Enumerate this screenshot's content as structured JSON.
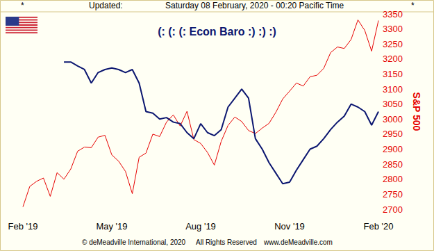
{
  "chart_data": {
    "type": "line",
    "title": "(: (: (: Econ Baro :) :) :)",
    "header": [
      "*",
      "Updated:",
      "Saturday 08 February, 2020 - 00:20 Pacific Time",
      "*"
    ],
    "footer": [
      "© deMeadville International, 2020",
      "All Rights Reserved",
      "www.deMeadville.com"
    ],
    "y_label": "S&P 500",
    "categories": [
      "Feb '19",
      null,
      null,
      null,
      null,
      null,
      null,
      null,
      null,
      null,
      null,
      null,
      null,
      "May '19",
      null,
      null,
      null,
      null,
      null,
      null,
      null,
      null,
      null,
      null,
      null,
      null,
      "Aug '19",
      null,
      null,
      null,
      null,
      null,
      null,
      null,
      null,
      null,
      null,
      null,
      null,
      "Nov '19",
      null,
      null,
      null,
      null,
      null,
      null,
      null,
      null,
      null,
      null,
      null,
      null,
      "Feb '20"
    ],
    "series": [
      {
        "name": "Econ Baro",
        "color": "#0b1670",
        "values": [
          null,
          null,
          null,
          null,
          null,
          null,
          3190,
          3190,
          3177,
          3165,
          3120,
          3155,
          3165,
          3170,
          3165,
          3155,
          3165,
          3120,
          3025,
          3020,
          3000,
          3005,
          2990,
          2985,
          2955,
          2935,
          2985,
          2955,
          2945,
          2965,
          3040,
          3070,
          3100,
          3070,
          2935,
          2900,
          2855,
          2820,
          2785,
          2790,
          2830,
          2865,
          2900,
          2910,
          2935,
          2965,
          2990,
          3010,
          3050,
          3040,
          3025,
          2980,
          3025
        ]
      },
      {
        "name": "S&P 500",
        "color": "#e60000",
        "values": [
          2708,
          2776,
          2793,
          2804,
          2743,
          2822,
          2800,
          2834,
          2893,
          2907,
          2905,
          2940,
          2946,
          2881,
          2860,
          2826,
          2752,
          2873,
          2887,
          2950,
          2942,
          2990,
          3014,
          2977,
          3026,
          2932,
          2919,
          2889,
          2847,
          2926,
          2979,
          3007,
          2992,
          2962,
          2952,
          2970,
          2986,
          3023,
          3067,
          3093,
          3120,
          3110,
          3141,
          3146,
          3169,
          3221,
          3240,
          3235,
          3265,
          3330,
          3295,
          3226,
          3328
        ]
      }
    ],
    "ylim": [
      2700,
      3350
    ],
    "yticks": [
      2700,
      2750,
      2800,
      2850,
      2900,
      2950,
      3000,
      3050,
      3100,
      3150,
      3200,
      3250,
      3300,
      3350
    ],
    "grid": false
  }
}
